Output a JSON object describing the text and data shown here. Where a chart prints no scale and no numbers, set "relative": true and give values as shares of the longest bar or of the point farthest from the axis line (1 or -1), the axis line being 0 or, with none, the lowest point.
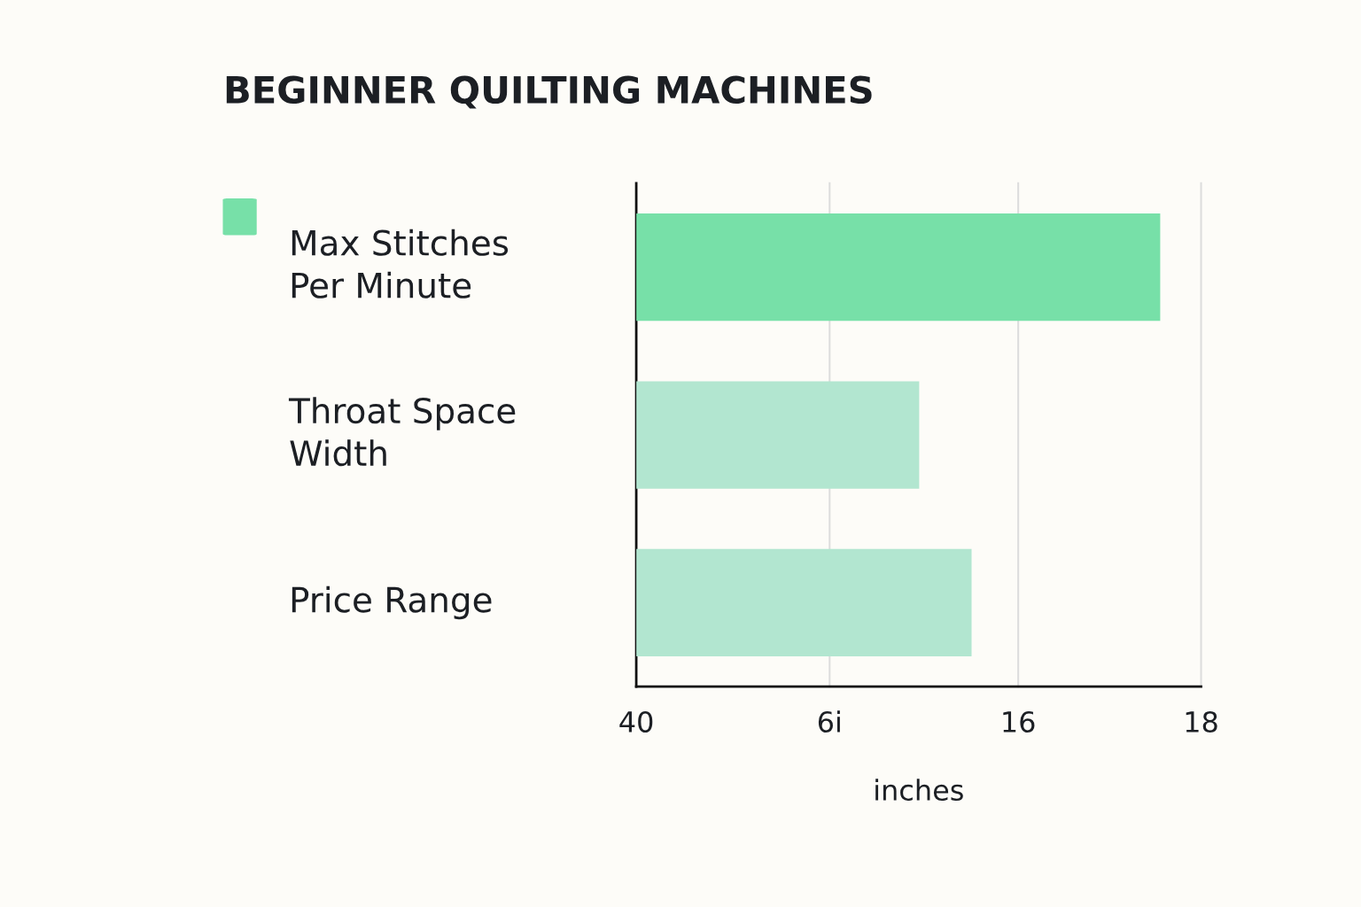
{
  "chart_data": {
    "type": "bar",
    "orientation": "horizontal",
    "relative": true,
    "title": "BEGINNER QUILTING MACHINES",
    "xlabel": "inches",
    "categories": [
      "Max Stitches\nPer Minute",
      "Throat Space\nWidth",
      "Price Range"
    ],
    "series": [
      {
        "color": "#77e0a8",
        "values": [
          1,
          null,
          null
        ]
      },
      {
        "color": "#b2e6d0",
        "values": [
          null,
          0.54,
          0.64
        ]
      }
    ],
    "annotations": [
      "40",
      "6i",
      "16",
      "18"
    ],
    "ref_lines": [
      {
        "axis": "x",
        "value": 0.369,
        "color": "#dddddd"
      },
      {
        "axis": "x",
        "value": 0.729,
        "color": "#dddddd"
      },
      {
        "axis": "x",
        "value": 1.078,
        "color": "#dddddd"
      }
    ]
  }
}
